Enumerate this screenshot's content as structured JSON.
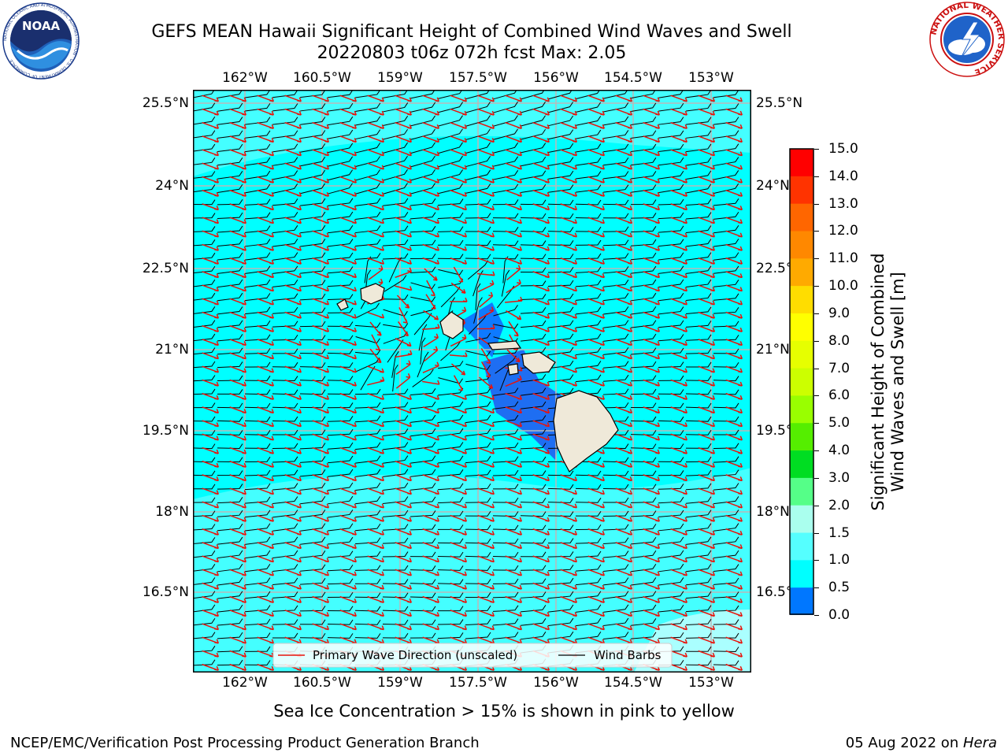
{
  "title": {
    "line1": "GEFS MEAN Hawaii Significant Height of Combined Wind Waves and Swell",
    "line2": "20220803 t06z 072h fcst   Max: 2.05"
  },
  "logos": {
    "left": "NOAA",
    "left_ring": "NATIONAL OCEANIC AND ATMOSPHERIC ADMINISTRATION · U.S. DEPARTMENT OF COMMERCE",
    "right_ring": "NATIONAL WEATHER SERVICE"
  },
  "map": {
    "lon_ticks": [
      "162°W",
      "160.5°W",
      "159°W",
      "157.5°W",
      "156°W",
      "154.5°W",
      "153°W"
    ],
    "lat_ticks": [
      "25.5°N",
      "24°N",
      "22.5°N",
      "21°N",
      "19.5°N",
      "18°N",
      "16.5°N"
    ],
    "lon_range": [
      -163.0,
      -152.2
    ],
    "lat_range": [
      15.2,
      25.8
    ],
    "ocean_color": "#00ffff",
    "land_color": "#efe9d9",
    "wave_arrow_color": "#e8140c",
    "barb_color": "#000000"
  },
  "legend": {
    "wave_direction": "Primary Wave Direction (unscaled)",
    "wind_barbs": "Wind Barbs"
  },
  "colorbar": {
    "title_line1": "Significant Height of Combined",
    "title_line2": "Wind Waves and Swell [m]",
    "labels": [
      "15.0",
      "14.0",
      "13.0",
      "12.0",
      "11.0",
      "10.0",
      "9.0",
      "8.0",
      "7.0",
      "6.0",
      "5.0",
      "4.0",
      "3.0",
      "2.0",
      "1.5",
      "1.0",
      "0.5",
      "0.0"
    ],
    "colors": [
      "#ff0000",
      "#ff3300",
      "#ff6600",
      "#ff8800",
      "#ffaa00",
      "#ffdd00",
      "#ffff00",
      "#e6ff00",
      "#ccff00",
      "#99ff00",
      "#55ee00",
      "#00dd22",
      "#55ff88",
      "#aaffee",
      "#55ffff",
      "#00ffff",
      "#0077ff",
      "#0000ff"
    ]
  },
  "caption": "Sea Ice Concentration > 15% is shown in pink to yellow",
  "footer": {
    "left": "NCEP/EMC/Verification Post Processing Product Generation Branch",
    "right_date": "05 Aug 2022 on ",
    "right_host": "Hera"
  }
}
